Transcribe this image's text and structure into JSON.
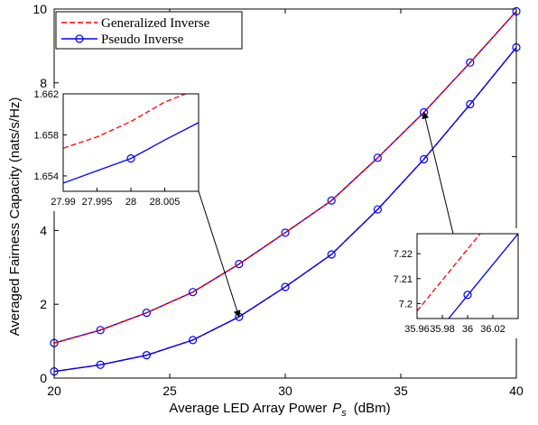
{
  "chart_data": {
    "type": "line",
    "xlabel": "Average LED Array Power",
    "xlabel_symbol": "P",
    "xlabel_subscript": "s",
    "xlabel_unit": "(dBm)",
    "ylabel": "Averaged Fairness Capacity (nats/s/Hz)",
    "xlim": [
      20,
      40
    ],
    "ylim": [
      0,
      10
    ],
    "xticks": [
      20,
      25,
      30,
      35,
      40
    ],
    "yticks": [
      0,
      2,
      4,
      6,
      8,
      10
    ],
    "grid": false,
    "legend_position": "top-left",
    "series": [
      {
        "name": "Generalized Inverse",
        "color": "#ff0000",
        "style": "dashed",
        "marker": "none",
        "x": [
          20,
          22,
          24,
          26,
          28,
          30,
          32,
          34,
          36,
          38,
          40
        ],
        "y": [
          0.18,
          0.36,
          0.62,
          1.03,
          1.66,
          2.47,
          3.35,
          4.57,
          5.93,
          7.42,
          8.96
        ]
      },
      {
        "name": "Pseudo Inverse",
        "color": "#0000ff",
        "style": "solid",
        "marker": "circle",
        "x": [
          20,
          22,
          24,
          26,
          28,
          30,
          32,
          34,
          36,
          38,
          40
        ],
        "y": [
          0.18,
          0.36,
          0.62,
          1.03,
          1.66,
          2.47,
          3.35,
          4.57,
          5.93,
          7.42,
          8.96
        ]
      },
      {
        "name": "",
        "color": "#0000ff",
        "style": "solid",
        "marker": "circle",
        "x": [
          20,
          22,
          24,
          26,
          28,
          30,
          32,
          34,
          36,
          38,
          40
        ],
        "y": [
          0.95,
          1.3,
          1.77,
          2.33,
          3.09,
          3.94,
          4.81,
          5.97,
          7.2,
          8.55,
          9.94
        ]
      },
      {
        "name": "",
        "color": "#ff0000",
        "style": "dashed",
        "marker": "none",
        "x": [
          20,
          22,
          24,
          26,
          28,
          30,
          32,
          34,
          36,
          38,
          40
        ],
        "y": [
          0.95,
          1.3,
          1.77,
          2.33,
          3.09,
          3.94,
          4.81,
          5.97,
          7.2,
          8.55,
          9.94
        ]
      }
    ],
    "insets": [
      {
        "id": "inset-1",
        "xlim": [
          27.99,
          28.01
        ],
        "ylim": [
          1.6525,
          1.662
        ],
        "xticks": [
          27.99,
          27.995,
          28,
          28.005
        ],
        "xtick_labels": [
          "27.99",
          "27.995",
          "28",
          "28.005"
        ],
        "yticks": [
          1.654,
          1.658,
          1.662
        ],
        "ytick_labels": [
          "1.654",
          "1.658",
          "1.662"
        ],
        "lines": [
          {
            "color": "#ff0000",
            "style": "dashed",
            "x": [
              27.99,
              27.995,
              28,
              28.005,
              28.01
            ],
            "y": [
              1.6567,
              1.6578,
              1.6593,
              1.6612,
              1.6625
            ]
          },
          {
            "color": "#0000ff",
            "style": "solid",
            "x": [
              27.99,
              27.995,
              28,
              28.005,
              28.01
            ],
            "y": [
              1.6533,
              1.6545,
              1.6557,
              1.6575,
              1.6592
            ]
          }
        ],
        "markers": [
          {
            "color": "#0000ff",
            "x": 28,
            "y": 1.6557
          }
        ],
        "arrow_target": {
          "x": 28,
          "y": 1.66
        }
      },
      {
        "id": "inset-2",
        "xlim": [
          35.96,
          36.04
        ],
        "ylim": [
          7.194,
          7.228
        ],
        "xticks": [
          35.96,
          35.98,
          36,
          36.02
        ],
        "xtick_labels": [
          "35.96",
          "35.98",
          "36",
          "36.02"
        ],
        "yticks": [
          7.2,
          7.21,
          7.22
        ],
        "ytick_labels": [
          "7.2",
          "7.21",
          "7.22"
        ],
        "lines": [
          {
            "color": "#ff0000",
            "style": "dashed",
            "x": [
              35.96,
              36.01
            ],
            "y": [
              7.197,
              7.228
            ]
          },
          {
            "color": "#0000ff",
            "style": "solid",
            "x": [
              35.985,
              36.04
            ],
            "y": [
              7.194,
              7.228
            ]
          }
        ],
        "markers": [
          {
            "color": "#0000ff",
            "x": 36,
            "y": 7.2035
          }
        ],
        "arrow_target": {
          "x": 36,
          "y": 7.2
        }
      }
    ]
  }
}
